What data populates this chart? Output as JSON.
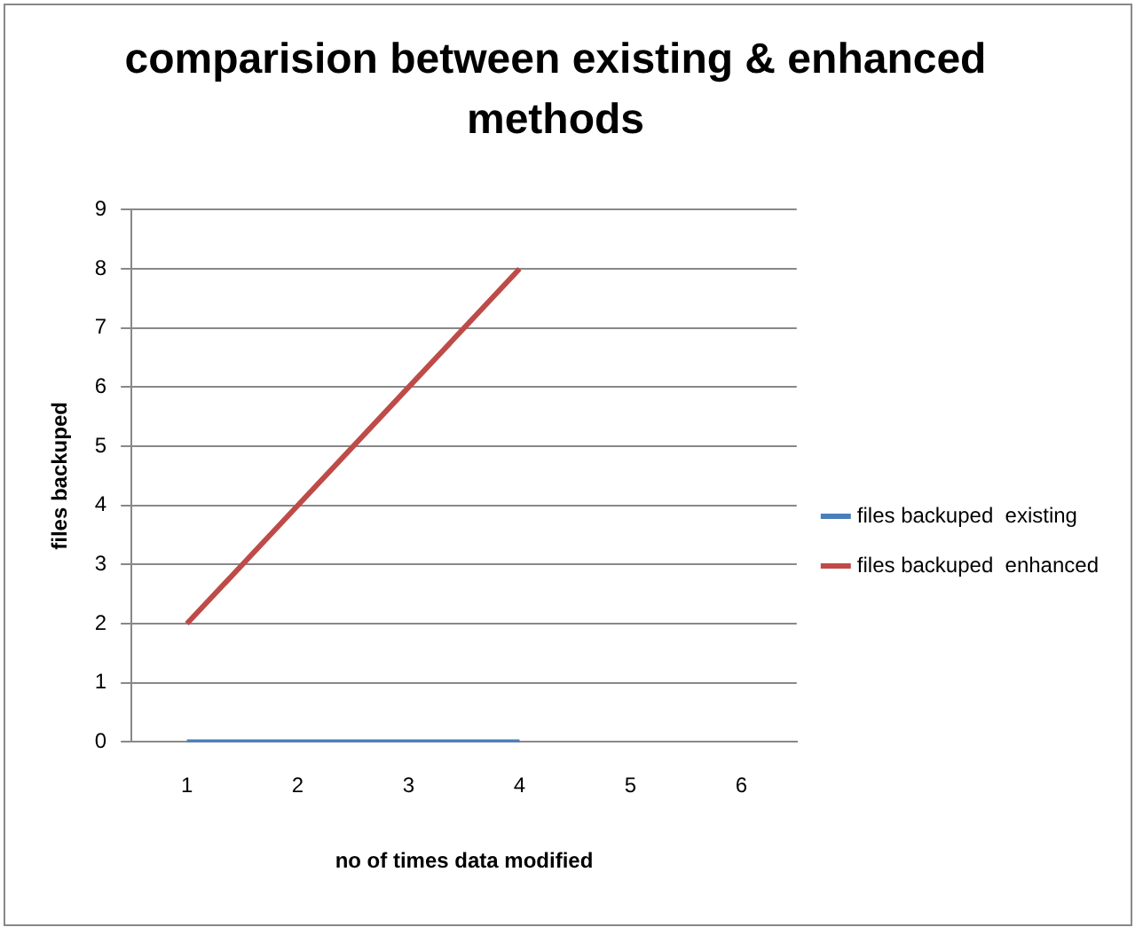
{
  "chart_data": {
    "type": "line",
    "title": "comparision between existing & enhanced methods",
    "xlabel": "no of times data modified",
    "ylabel": "files backuped",
    "categories": [
      "1",
      "2",
      "3",
      "4",
      "5",
      "6"
    ],
    "series": [
      {
        "name": "files backuped  existing",
        "color": "#4a7ebb",
        "values": [
          0,
          0,
          0,
          0,
          null,
          null
        ]
      },
      {
        "name": "files backuped  enhanced",
        "color": "#be4b48",
        "values": [
          2,
          4,
          6,
          8,
          null,
          null
        ]
      }
    ],
    "ylim": [
      0,
      9
    ],
    "yticks": [
      0,
      1,
      2,
      3,
      4,
      5,
      6,
      7,
      8,
      9
    ],
    "grid": "y",
    "legend": "right",
    "marker": "none"
  }
}
